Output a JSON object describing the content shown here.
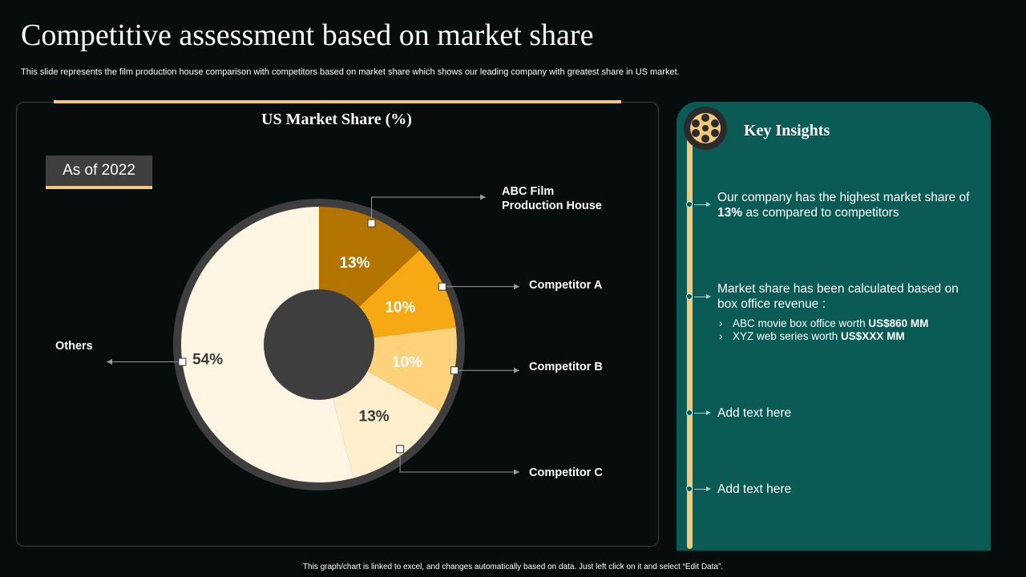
{
  "title": "Competitive assessment based on market share",
  "subtitle": "This slide represents the film production house comparison with competitors based on market share which shows our leading company with greatest share in US market.",
  "badge": "As of 2022",
  "chart_data": {
    "type": "pie",
    "title": "US Market Share (%)",
    "categories": [
      "ABC Film Production House",
      "Competitor A",
      "Competitor B",
      "Competitor C",
      "Others"
    ],
    "values": [
      13,
      10,
      10,
      13,
      54
    ],
    "data_labels": [
      "13%",
      "10%",
      "10%",
      "13%",
      "54%"
    ],
    "colors": [
      "#b37400",
      "#f7a913",
      "#fdd27a",
      "#fdefcc",
      "#fff5e3"
    ],
    "label_colors": [
      "#ffffff",
      "#ffffff",
      "#ffffff",
      "#3a3a3a",
      "#3a3a3a"
    ],
    "callouts": [
      "ABC Film\nProduction House",
      "Competitor A",
      "Competitor B",
      "Competitor C",
      "Others"
    ]
  },
  "insights": {
    "title": "Key Insights",
    "item1_pre": "Our company has the highest market share of ",
    "item1_bold": "13%",
    "item1_post": " as compared to competitors",
    "item2": "Market share has been calculated based on box office revenue :",
    "sub1_text": "ABC movie box office worth ",
    "sub1_bold": "US$860 MM",
    "sub2_text": "XYZ web series worth ",
    "sub2_bold": "US$XXX MM",
    "chevron": "›",
    "item3": "Add text here",
    "item4": "Add text here",
    "reel_icon": "film-reel-icon"
  },
  "footer": "This graph/chart is linked to excel, and changes automatically based on data. Just left click on it and select “Edit Data”."
}
